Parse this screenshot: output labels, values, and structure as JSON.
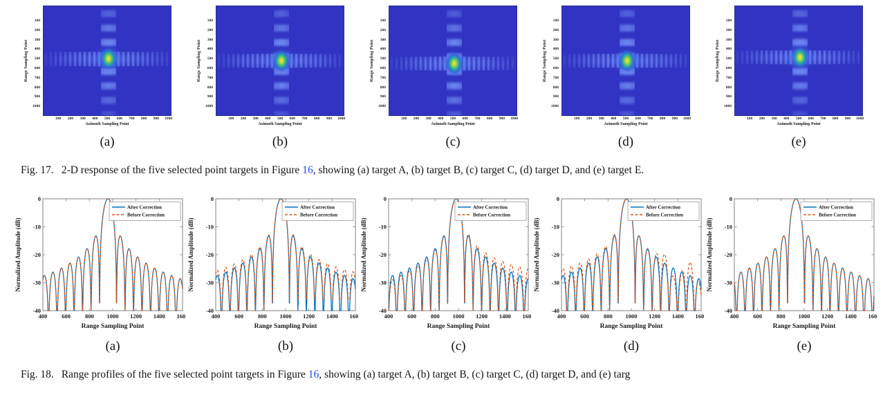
{
  "document": {
    "fig17_caption": {
      "tag": "Fig. 17.",
      "before_link": "2-D response of the five selected point targets in Figure ",
      "link": "16",
      "after_link": ", showing (a) target A, (b) target B, (c) target C, (d) target D, and (e) target E."
    },
    "fig18_caption": {
      "tag": "Fig. 18.",
      "before_link": "Range profiles of the five selected point targets in Figure ",
      "link": "16",
      "after_link": ", showing (a) target A, (b) target B, (c) target C, (d) target D, and (e) targ"
    }
  },
  "colors": {
    "after_correction": "#0072BD",
    "before_correction": "#D95319",
    "link": "#2545E8",
    "heatmap_background": "#3134C2",
    "heatmap_sidelobe": "#6078EC",
    "heatmap_peak_core": "#FCE82C",
    "axis_box": "#808080"
  },
  "chart_data": {
    "figure17": {
      "type": "heatmap",
      "colormap": "parula (dark blue background, cyan/green ring, yellow peak)",
      "xlabel": "Azimuth Sampling Point",
      "ylabel": "Range Sampling Point",
      "xticks": [
        100,
        200,
        300,
        400,
        500,
        600,
        700,
        800,
        900,
        1000
      ],
      "yticks": [
        100,
        200,
        300,
        400,
        500,
        600,
        700,
        800,
        900,
        1000
      ],
      "x_range": [
        1,
        1024
      ],
      "y_range": [
        1,
        1024
      ],
      "pattern": "2-D sinc impulse response with cross-shaped azimuth and range sidelobes through the peak",
      "panels": [
        {
          "label": "(a)",
          "target": "A",
          "peak": {
            "azimuth": 510,
            "range": 500
          }
        },
        {
          "label": "(b)",
          "target": "B",
          "peak": {
            "azimuth": 510,
            "range": 520
          }
        },
        {
          "label": "(c)",
          "target": "C",
          "peak": {
            "azimuth": 510,
            "range": 550
          }
        },
        {
          "label": "(d)",
          "target": "D",
          "peak": {
            "azimuth": 510,
            "range": 520
          }
        },
        {
          "label": "(e)",
          "target": "E",
          "peak": {
            "azimuth": 510,
            "range": 485
          }
        }
      ]
    },
    "figure18": {
      "type": "line",
      "xlabel": "Range Sampling Point",
      "ylabel": "Normalized Amplitude (dB)",
      "x_range": [
        400,
        1600
      ],
      "ylim": [
        -40,
        0
      ],
      "xticks": [
        400,
        600,
        800,
        1000,
        1200,
        1400,
        1600
      ],
      "yticks": [
        0,
        -10,
        -20,
        -30,
        -40
      ],
      "grid": false,
      "legend_position": "upper-right inset box",
      "legend": [
        {
          "name": "After Correction",
          "style": "solid"
        },
        {
          "name": "Before Correction",
          "style": "dashed"
        }
      ],
      "series_model": "normalized amplitude 20*log10(|sinc((x-peak_x)/null_spacing)|) dB, clipped at -40 dB",
      "sidelobe_peaks_dB": [
        -13.3,
        -17.8,
        -20.8,
        -23.0,
        -24.8,
        -26.2,
        -27.4,
        -28.4
      ],
      "panels": [
        {
          "label": "(a)",
          "target": "A",
          "peak_x": 960,
          "null_spacing": 73,
          "before": {
            "tilt_left_dB": 0,
            "tilt_right_dB": 0,
            "floor_left_dB": -41,
            "floor_right_dB": -41,
            "wobble_dB": 0
          },
          "note": "after and before curves overlap"
        },
        {
          "label": "(b)",
          "target": "B",
          "peak_x": 960,
          "null_spacing": 73,
          "before": {
            "tilt_left_dB": 2,
            "tilt_right_dB": 2.5,
            "floor_left_dB": -41,
            "floor_right_dB": -36,
            "wobble_dB": 0
          },
          "note": "before-correction sidelobes raised, right-side nulls filled to about -36 dB"
        },
        {
          "label": "(c)",
          "target": "C",
          "peak_x": 980,
          "null_spacing": 73,
          "before": {
            "tilt_left_dB": -1.5,
            "tilt_right_dB": 3.5,
            "floor_left_dB": -41,
            "floor_right_dB": -41,
            "wobble_dB": 0
          },
          "note": "before-correction sidelobes about 3 dB higher on the right of the peak"
        },
        {
          "label": "(d)",
          "target": "D",
          "peak_x": 960,
          "null_spacing": 73,
          "before": {
            "tilt_left_dB": 2.5,
            "tilt_right_dB": 1,
            "floor_left_dB": -41,
            "floor_right_dB": -46,
            "wobble_dB": 4
          },
          "note": "before-correction right-side sidelobes irregular, dipping below -40 dB"
        },
        {
          "label": "(e)",
          "target": "E",
          "peak_x": 930,
          "null_spacing": 73,
          "before": {
            "tilt_left_dB": 0,
            "tilt_right_dB": 0,
            "floor_left_dB": -41,
            "floor_right_dB": -41,
            "wobble_dB": 0
          },
          "note": "after and before curves overlap"
        }
      ]
    }
  }
}
